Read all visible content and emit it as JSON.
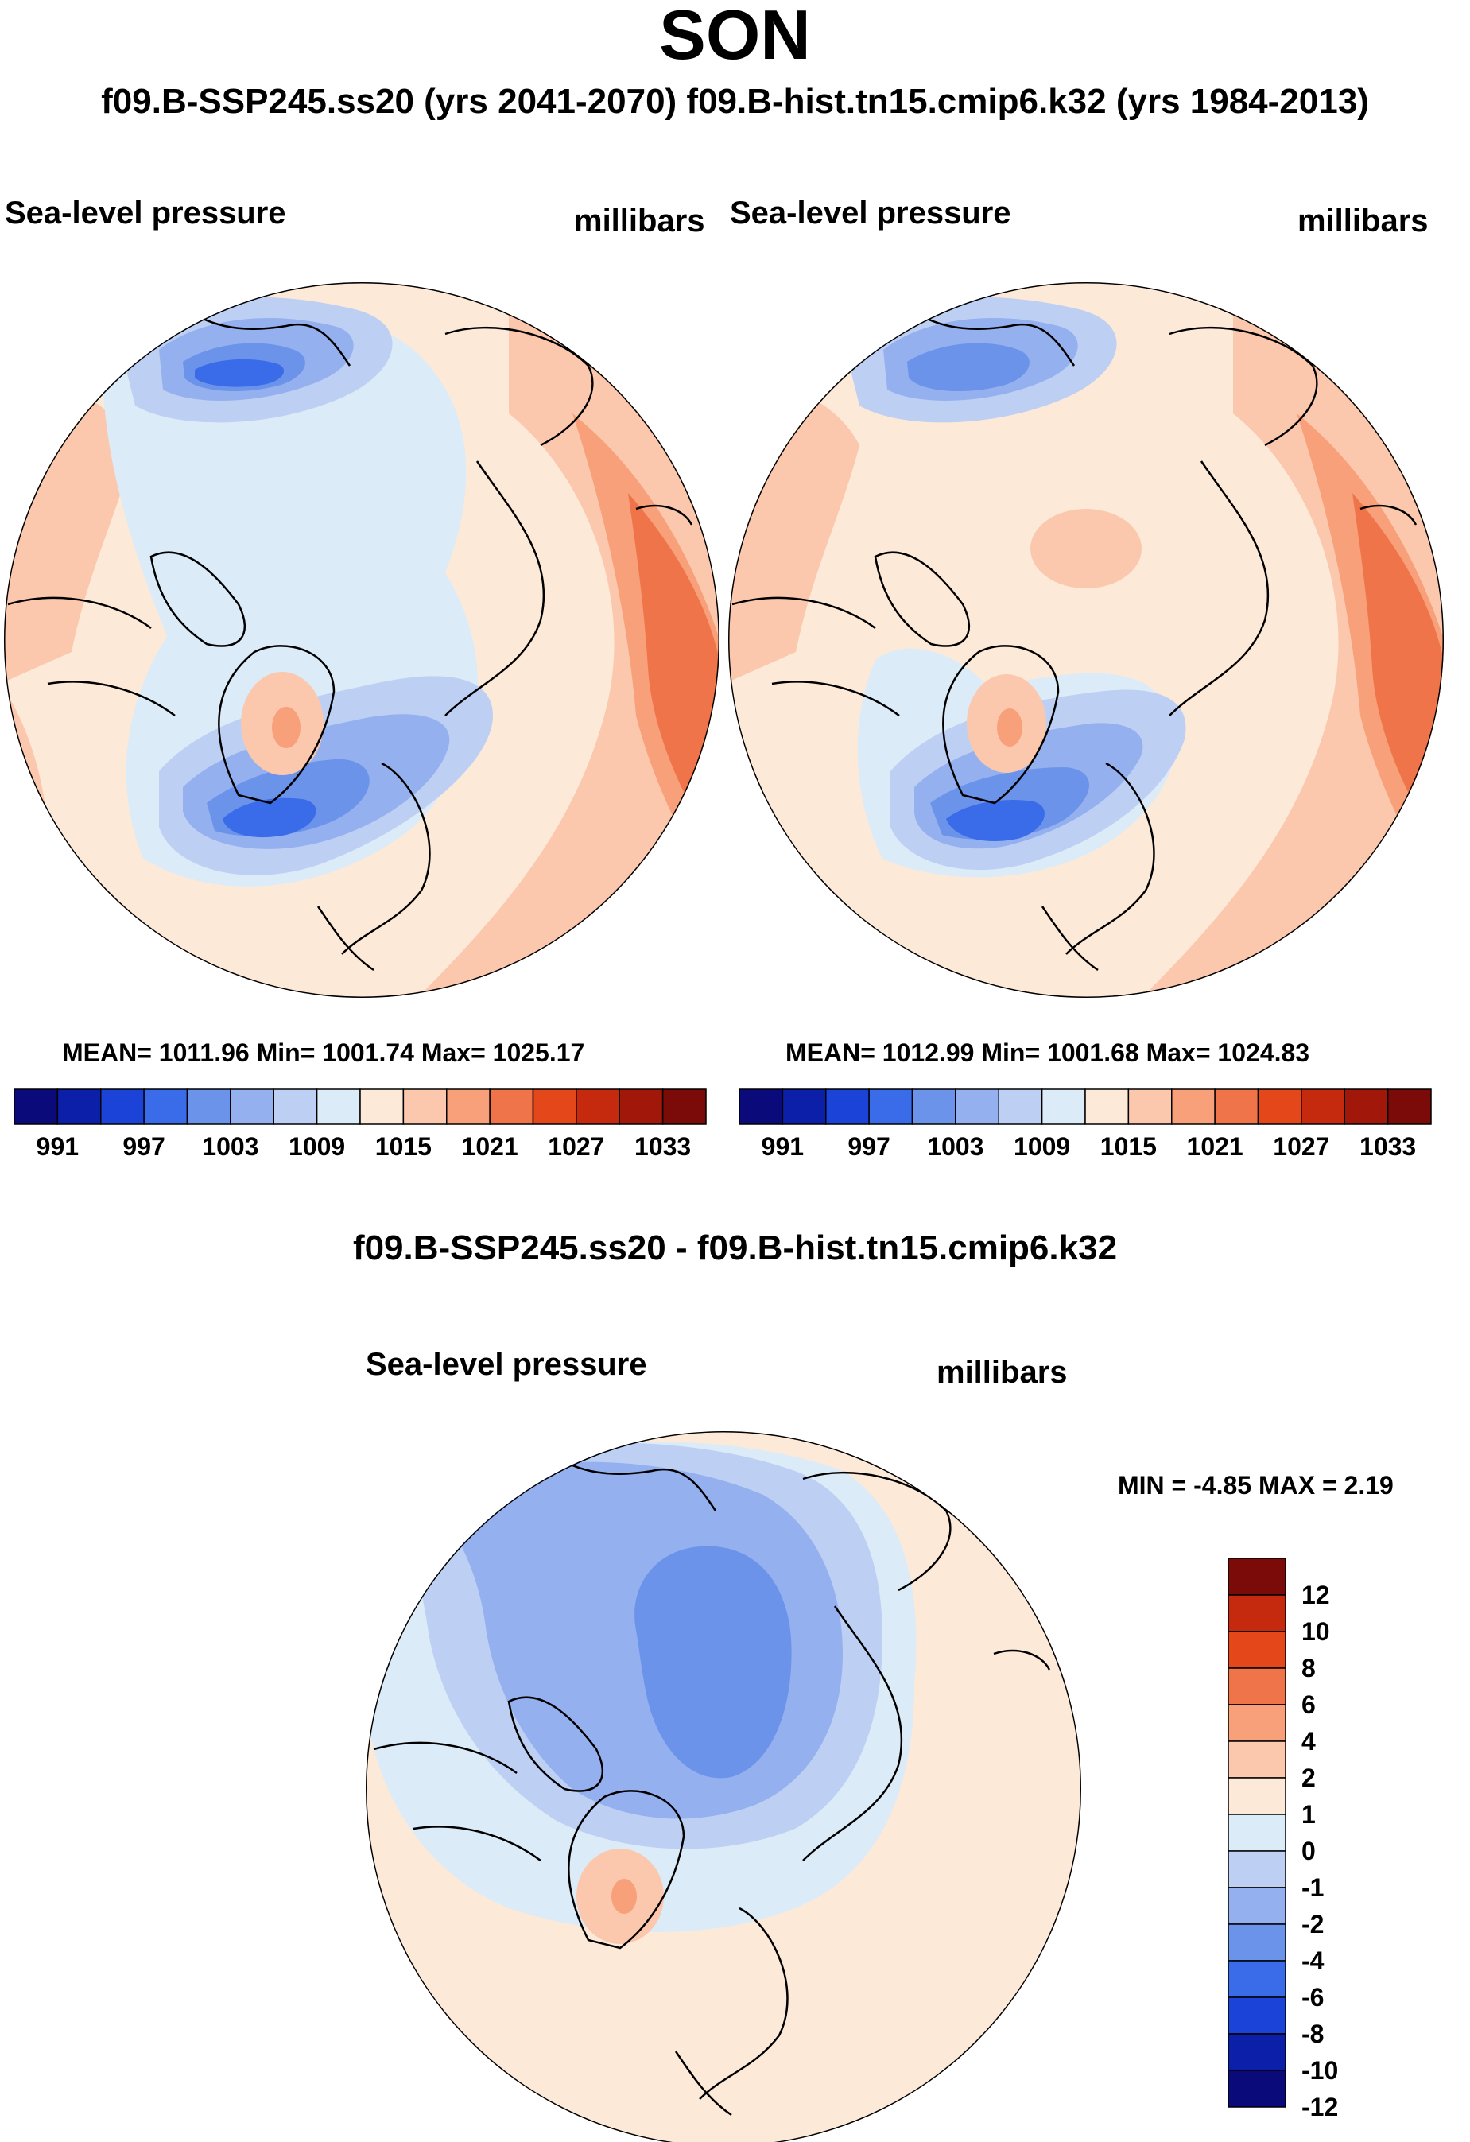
{
  "title": "SON",
  "subtitle": "f09.B-SSP245.ss20 (yrs 2041-2070)  f09.B-hist.tn15.cmip6.k32 (yrs 1984-2013)",
  "diff_title": "f09.B-SSP245.ss20 - f09.B-hist.tn15.cmip6.k32",
  "colors": {
    "abs_palette": [
      "#0a0a7a",
      "#0b1fa8",
      "#1c43d8",
      "#3a6be8",
      "#6b93ea",
      "#94b0ee",
      "#bdd0f4",
      "#dcebf8",
      "#fde9d8",
      "#fbc8ae",
      "#f7a07a",
      "#f0744a",
      "#e4471a",
      "#c62a0e",
      "#a1180b",
      "#7a0b08"
    ],
    "diff_palette": [
      "#0a0a7a",
      "#0b1fa8",
      "#1c43d8",
      "#3a6be8",
      "#6b93ea",
      "#94b0ee",
      "#bdd0f4",
      "#dcebf8",
      "#fde9d8",
      "#fbc8ae",
      "#f7a07a",
      "#f0744a",
      "#e4471a",
      "#c62a0e",
      "#7a0b08"
    ]
  },
  "chart_data": [
    {
      "type": "heatmap",
      "projection": "north-polar-stereographic",
      "left_label": "Sea-level pressure",
      "right_label": "millibars",
      "stats": "MEAN= 1011.96  Min= 1001.74  Max= 1025.17",
      "mean": 1011.96,
      "min": 1001.74,
      "max": 1025.17,
      "colorbar": {
        "orientation": "horizontal",
        "levels": [
          991,
          994,
          997,
          1000,
          1003,
          1006,
          1009,
          1012,
          1015,
          1018,
          1021,
          1024,
          1027,
          1030,
          1033
        ],
        "tick_labels": [
          "991",
          "997",
          "1003",
          "1009",
          "1015",
          "1021",
          "1027",
          "1033"
        ]
      }
    },
    {
      "type": "heatmap",
      "projection": "north-polar-stereographic",
      "left_label": "Sea-level pressure",
      "right_label": "millibars",
      "stats": "MEAN= 1012.99  Min= 1001.68  Max= 1024.83",
      "mean": 1012.99,
      "min": 1001.68,
      "max": 1024.83,
      "colorbar": {
        "orientation": "horizontal",
        "levels": [
          991,
          994,
          997,
          1000,
          1003,
          1006,
          1009,
          1012,
          1015,
          1018,
          1021,
          1024,
          1027,
          1030,
          1033
        ],
        "tick_labels": [
          "991",
          "997",
          "1003",
          "1009",
          "1015",
          "1021",
          "1027",
          "1033"
        ]
      }
    },
    {
      "type": "heatmap",
      "projection": "north-polar-stereographic",
      "left_label": "Sea-level pressure",
      "right_label": "millibars",
      "stats": "MIN =  -4.85 MAX =   2.19",
      "min": -4.85,
      "max": 2.19,
      "colorbar": {
        "orientation": "vertical",
        "levels": [
          12,
          10,
          8,
          6,
          4,
          2,
          1,
          0,
          -1,
          -2,
          -4,
          -6,
          -8,
          -10,
          -12
        ],
        "tick_labels": [
          "12",
          "10",
          "8",
          "6",
          "4",
          "2",
          "1",
          "0",
          "-1",
          "-2",
          "-4",
          "-6",
          "-8",
          "-10",
          "-12"
        ]
      }
    }
  ]
}
